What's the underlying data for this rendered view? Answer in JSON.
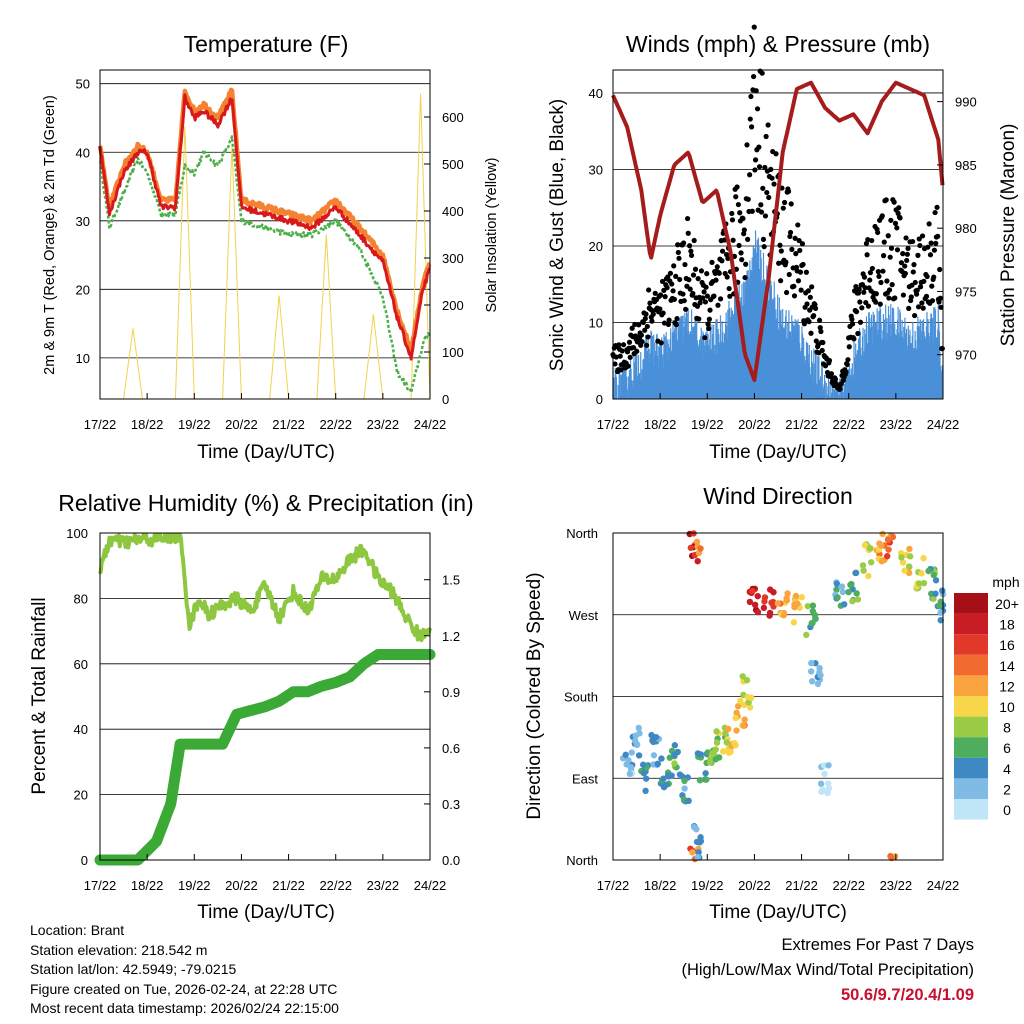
{
  "panels": {
    "temperature": {
      "title": "Temperature (F)",
      "ylabel_left": "2m & 9m T (Red, Orange) & 2m Td (Green)",
      "ylabel_right": "Solar Insolation (Yellow)",
      "xlabel": "Time (Day/UTC)",
      "xticks": [
        "17/22",
        "18/22",
        "19/22",
        "20/22",
        "21/22",
        "22/22",
        "23/22",
        "24/22"
      ],
      "yticks_left": [
        "10",
        "20",
        "30",
        "40",
        "50"
      ],
      "yticks_right": [
        "0",
        "100",
        "200",
        "300",
        "400",
        "500",
        "600"
      ]
    },
    "winds": {
      "title": "Winds (mph) & Pressure (mb)",
      "ylabel_left": "Sonic Wind & Gust (Blue, Black)",
      "ylabel_right": "Station Pressure (Maroon)",
      "xlabel": "Time (Day/UTC)",
      "xticks": [
        "17/22",
        "18/22",
        "19/22",
        "20/22",
        "21/22",
        "22/22",
        "23/22",
        "24/22"
      ],
      "yticks_left": [
        "0",
        "10",
        "20",
        "30",
        "40"
      ],
      "yticks_right": [
        "970",
        "975",
        "980",
        "985",
        "990"
      ]
    },
    "humidity": {
      "title": "Relative Humidity (%) & Precipitation (in)",
      "ylabel_left": "Percent & Total Rainfall",
      "xlabel": "Time (Day/UTC)",
      "xticks": [
        "17/22",
        "18/22",
        "19/22",
        "20/22",
        "21/22",
        "22/22",
        "23/22",
        "24/22"
      ],
      "yticks_left": [
        "0",
        "20",
        "40",
        "60",
        "80",
        "100"
      ],
      "yticks_right": [
        "0.0",
        "0.3",
        "0.6",
        "0.9",
        "1.2",
        "1.5"
      ]
    },
    "direction": {
      "title": "Wind Direction",
      "ylabel_left": "Direction (Colored By Speed)",
      "xlabel": "Time (Day/UTC)",
      "xticks": [
        "17/22",
        "18/22",
        "19/22",
        "20/22",
        "21/22",
        "22/22",
        "23/22",
        "24/22"
      ],
      "yticks_left": [
        "North",
        "East",
        "South",
        "West",
        "North"
      ],
      "legend_title": "mph",
      "legend_labels": [
        "20+",
        "18",
        "16",
        "14",
        "12",
        "10",
        "8",
        "6",
        "4",
        "2",
        "0"
      ],
      "legend_colors": [
        "#a50f15",
        "#c81d25",
        "#e0392a",
        "#f26b2e",
        "#f9a43e",
        "#f7d64a",
        "#9acd45",
        "#4fae5e",
        "#3e88c4",
        "#80bbe6",
        "#bfe6f7"
      ]
    }
  },
  "chart_data": [
    {
      "type": "line",
      "title": "Temperature (F)",
      "xlabel": "Time (Day/UTC)",
      "x": [
        0,
        0.2,
        0.5,
        0.8,
        1.0,
        1.3,
        1.6,
        1.8,
        2.0,
        2.2,
        2.5,
        2.8,
        3.0,
        3.5,
        4.0,
        4.5,
        5.0,
        5.5,
        6.0,
        6.3,
        6.6,
        6.85,
        7.0
      ],
      "ylim": [
        4,
        52
      ],
      "y2lim": [
        0,
        700
      ],
      "series": [
        {
          "name": "2m T",
          "color": "#d7191c",
          "values": [
            41,
            31,
            37,
            40,
            40,
            32,
            32,
            48,
            45,
            46,
            44,
            48,
            32,
            31,
            30,
            29,
            32,
            28,
            24,
            16,
            10,
            20,
            23
          ]
        },
        {
          "name": "9m T",
          "color": "#f58231",
          "values": [
            41,
            32,
            38,
            41,
            40,
            33,
            33,
            49,
            46,
            47,
            45,
            49,
            33,
            32,
            31,
            30,
            33,
            29,
            25,
            17,
            11,
            21,
            24
          ]
        },
        {
          "name": "2m Td",
          "color": "#4daf4a",
          "values": [
            39,
            29,
            34,
            39,
            37,
            31,
            31,
            38,
            37,
            40,
            38,
            42,
            30,
            29,
            28,
            28,
            30,
            26,
            19,
            8,
            5,
            12,
            14
          ]
        },
        {
          "name": "Solar Insolation",
          "color": "#f2d24b",
          "axis": "right",
          "x": [
            0.5,
            0.7,
            0.9,
            1.6,
            1.8,
            2.0,
            2.6,
            2.8,
            3.0,
            3.6,
            3.8,
            4.0,
            4.6,
            4.8,
            5.0,
            5.6,
            5.8,
            6.0,
            6.6,
            6.8,
            7.0
          ],
          "values": [
            0,
            150,
            0,
            0,
            580,
            0,
            0,
            540,
            0,
            0,
            220,
            0,
            0,
            350,
            0,
            0,
            180,
            0,
            0,
            650,
            0
          ]
        }
      ]
    },
    {
      "type": "scatter",
      "title": "Winds (mph) & Pressure (mb)",
      "xlabel": "Time (Day/UTC)",
      "x": [
        0,
        0.3,
        0.6,
        0.8,
        1.0,
        1.3,
        1.6,
        1.9,
        2.2,
        2.5,
        2.8,
        3.0,
        3.3,
        3.6,
        3.9,
        4.2,
        4.5,
        4.8,
        5.1,
        5.4,
        5.7,
        6.0,
        6.3,
        6.6,
        6.9,
        7.0
      ],
      "ylim": [
        0,
        43
      ],
      "y2lim": [
        966.5,
        992.5
      ],
      "series": [
        {
          "name": "Sonic Wind",
          "color": "#4a90d9",
          "values": [
            2,
            3,
            5,
            7,
            6,
            8,
            10,
            7,
            8,
            11,
            14,
            20,
            15,
            10,
            9,
            5,
            2,
            0,
            5,
            9,
            10,
            10,
            8,
            9,
            10,
            3
          ]
        },
        {
          "name": "Gust",
          "color": "#000000",
          "values": [
            5,
            6,
            9,
            12,
            11,
            14,
            18,
            12,
            14,
            19,
            24,
            38,
            27,
            22,
            18,
            12,
            5,
            1,
            10,
            17,
            19,
            20,
            16,
            17,
            19,
            6
          ]
        },
        {
          "name": "Station Pressure",
          "color": "#a51c1c",
          "axis": "right",
          "values": [
            990.5,
            988,
            983,
            977.5,
            981,
            985,
            986,
            982,
            983,
            978,
            970,
            968,
            976,
            986,
            991,
            991.5,
            989.5,
            988.5,
            989,
            987.5,
            990,
            991.5,
            991,
            990.5,
            987,
            983
          ]
        }
      ]
    },
    {
      "type": "line",
      "title": "Relative Humidity (%) & Precipitation (in)",
      "xlabel": "Time (Day/UTC)",
      "x": [
        0,
        0.2,
        0.5,
        0.8,
        1.2,
        1.5,
        1.7,
        1.9,
        2.1,
        2.3,
        2.6,
        2.9,
        3.2,
        3.5,
        3.8,
        4.1,
        4.4,
        4.7,
        5.0,
        5.3,
        5.6,
        5.9,
        6.2,
        6.5,
        6.8,
        7.0
      ],
      "ylim": [
        0,
        100
      ],
      "y2lim": [
        0,
        1.75
      ],
      "series": [
        {
          "name": "Relative Humidity",
          "color": "#8dc63f",
          "values": [
            88,
            98,
            97,
            98,
            98,
            99,
            99,
            72,
            80,
            75,
            78,
            80,
            76,
            84,
            74,
            82,
            76,
            86,
            86,
            92,
            95,
            86,
            82,
            74,
            68,
            72
          ]
        },
        {
          "name": "Total Rainfall",
          "color": "#3aa935",
          "axis": "right",
          "values": [
            0,
            0,
            0,
            0,
            0.1,
            0.3,
            0.62,
            0.62,
            0.62,
            0.62,
            0.62,
            0.78,
            0.8,
            0.82,
            0.85,
            0.9,
            0.9,
            0.93,
            0.95,
            0.98,
            1.05,
            1.1,
            1.1,
            1.1,
            1.1,
            1.1
          ]
        }
      ]
    },
    {
      "type": "scatter",
      "title": "Wind Direction",
      "xlabel": "Time (Day/UTC)",
      "ylabel": "Direction (Colored By Speed)",
      "y_categories": [
        "North",
        "East",
        "South",
        "West",
        "North"
      ],
      "points": [
        {
          "x": 0.3,
          "dir": 110,
          "mph": 2
        },
        {
          "x": 0.5,
          "dir": 130,
          "mph": 3
        },
        {
          "x": 0.7,
          "dir": 90,
          "mph": 4
        },
        {
          "x": 0.9,
          "dir": 120,
          "mph": 3
        },
        {
          "x": 1.1,
          "dir": 95,
          "mph": 5
        },
        {
          "x": 1.3,
          "dir": 110,
          "mph": 6
        },
        {
          "x": 1.5,
          "dir": 80,
          "mph": 4
        },
        {
          "x": 1.7,
          "dir": 345,
          "mph": 18
        },
        {
          "x": 1.75,
          "dir": 355,
          "mph": 14
        },
        {
          "x": 1.8,
          "dir": 20,
          "mph": 4
        },
        {
          "x": 1.9,
          "dir": 100,
          "mph": 5
        },
        {
          "x": 2.1,
          "dir": 105,
          "mph": 7
        },
        {
          "x": 2.3,
          "dir": 130,
          "mph": 8
        },
        {
          "x": 2.5,
          "dir": 135,
          "mph": 10
        },
        {
          "x": 2.7,
          "dir": 160,
          "mph": 12
        },
        {
          "x": 2.85,
          "dir": 185,
          "mph": 9
        },
        {
          "x": 3.0,
          "dir": 288,
          "mph": 18
        },
        {
          "x": 3.3,
          "dir": 285,
          "mph": 16
        },
        {
          "x": 3.6,
          "dir": 282,
          "mph": 12
        },
        {
          "x": 3.9,
          "dir": 275,
          "mph": 10
        },
        {
          "x": 4.2,
          "dir": 265,
          "mph": 6
        },
        {
          "x": 4.3,
          "dir": 200,
          "mph": 2
        },
        {
          "x": 4.5,
          "dir": 90,
          "mph": 1
        },
        {
          "x": 4.8,
          "dir": 290,
          "mph": 4
        },
        {
          "x": 5.1,
          "dir": 300,
          "mph": 6
        },
        {
          "x": 5.4,
          "dir": 330,
          "mph": 8
        },
        {
          "x": 5.7,
          "dir": 345,
          "mph": 12
        },
        {
          "x": 5.9,
          "dir": 350,
          "mph": 14
        },
        {
          "x": 6.2,
          "dir": 325,
          "mph": 10
        },
        {
          "x": 6.5,
          "dir": 315,
          "mph": 8
        },
        {
          "x": 6.8,
          "dir": 305,
          "mph": 6
        },
        {
          "x": 6.95,
          "dir": 280,
          "mph": 4
        }
      ]
    }
  ],
  "footer": {
    "location": "Location: Brant",
    "elevation": "Station elevation: 218.542 m",
    "latlon": "Station lat/lon: 42.5949; -79.0215",
    "created": "Figure created on Tue, 2026-02-24, at 22:28 UTC",
    "recent": "Most recent data timestamp: 2026/02/24 22:15:00"
  },
  "extremes": {
    "title": "Extremes For Past 7 Days",
    "subtitle": "(High/Low/Max Wind/Total Precipitation)",
    "values": "50.6/9.7/20.4/1.09"
  }
}
